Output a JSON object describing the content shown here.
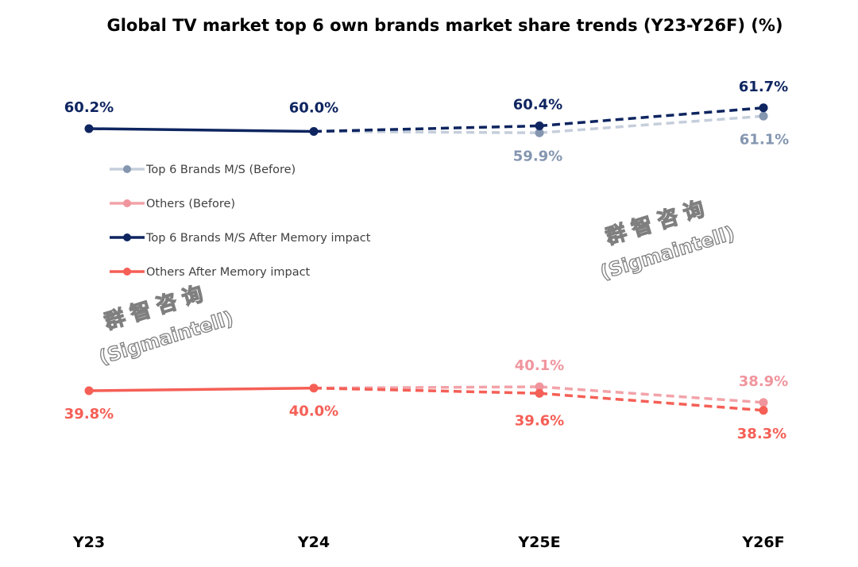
{
  "chart_data": {
    "type": "line",
    "title": "Global TV market top 6 own brands market share trends (Y23-Y26F) (%)",
    "categories": [
      "Y23",
      "Y24",
      "Y25E",
      "Y26F"
    ],
    "ylim": [
      30,
      70
    ],
    "grid": false,
    "legend_position": "left",
    "series": [
      {
        "name": "Top 6 Brands M/S (Before)",
        "values": [
          null,
          60.0,
          59.9,
          61.1
        ],
        "labels": [
          "",
          "",
          "59.9%",
          "61.1%"
        ],
        "color": "#8496B0",
        "line_color": "#C5CEDB",
        "dashed_from": 1
      },
      {
        "name": "Others (Before)",
        "values": [
          null,
          40.0,
          40.1,
          38.9
        ],
        "labels": [
          "",
          "",
          "40.1%",
          "38.9%"
        ],
        "color": "#F0959D",
        "line_color": "#F2A3A9",
        "dashed_from": 1
      },
      {
        "name": "Top 6 Brands M/S After Memory impact",
        "values": [
          60.2,
          60.0,
          60.4,
          61.7
        ],
        "labels": [
          "60.2%",
          "60.0%",
          "60.4%",
          "61.7%"
        ],
        "color": "#0E2560",
        "line_color": "#0E2560",
        "dashed_from": 1
      },
      {
        "name": "Others After Memory impact",
        "values": [
          39.8,
          40.0,
          39.6,
          38.3
        ],
        "labels": [
          "39.8%",
          "40.0%",
          "39.6%",
          "38.3%"
        ],
        "color": "#F55F56",
        "line_color": "#F55F56",
        "dashed_from": 1
      }
    ]
  },
  "watermark": {
    "line1": "群智咨询",
    "line2": "(Sigmaintell)"
  }
}
